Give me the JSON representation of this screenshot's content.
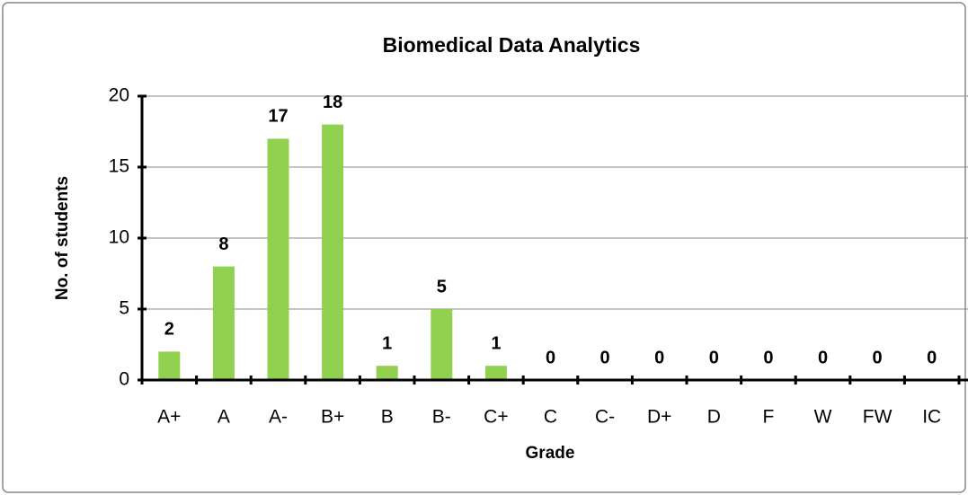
{
  "chart_data": {
    "type": "bar",
    "title": "Biomedical Data Analytics",
    "x_label": "Grade",
    "y_label": "No. of students",
    "categories": [
      "A+",
      "A",
      "A-",
      "B+",
      "B",
      "B-",
      "C+",
      "C",
      "C-",
      "D+",
      "D",
      "F",
      "W",
      "FW",
      "IC"
    ],
    "values": [
      2,
      8,
      17,
      18,
      1,
      5,
      1,
      0,
      0,
      0,
      0,
      0,
      0,
      0,
      0
    ],
    "color": "#92d050",
    "ylim": [
      0,
      20
    ],
    "yticks": [
      0,
      5,
      10,
      15,
      20
    ],
    "grid": true
  }
}
